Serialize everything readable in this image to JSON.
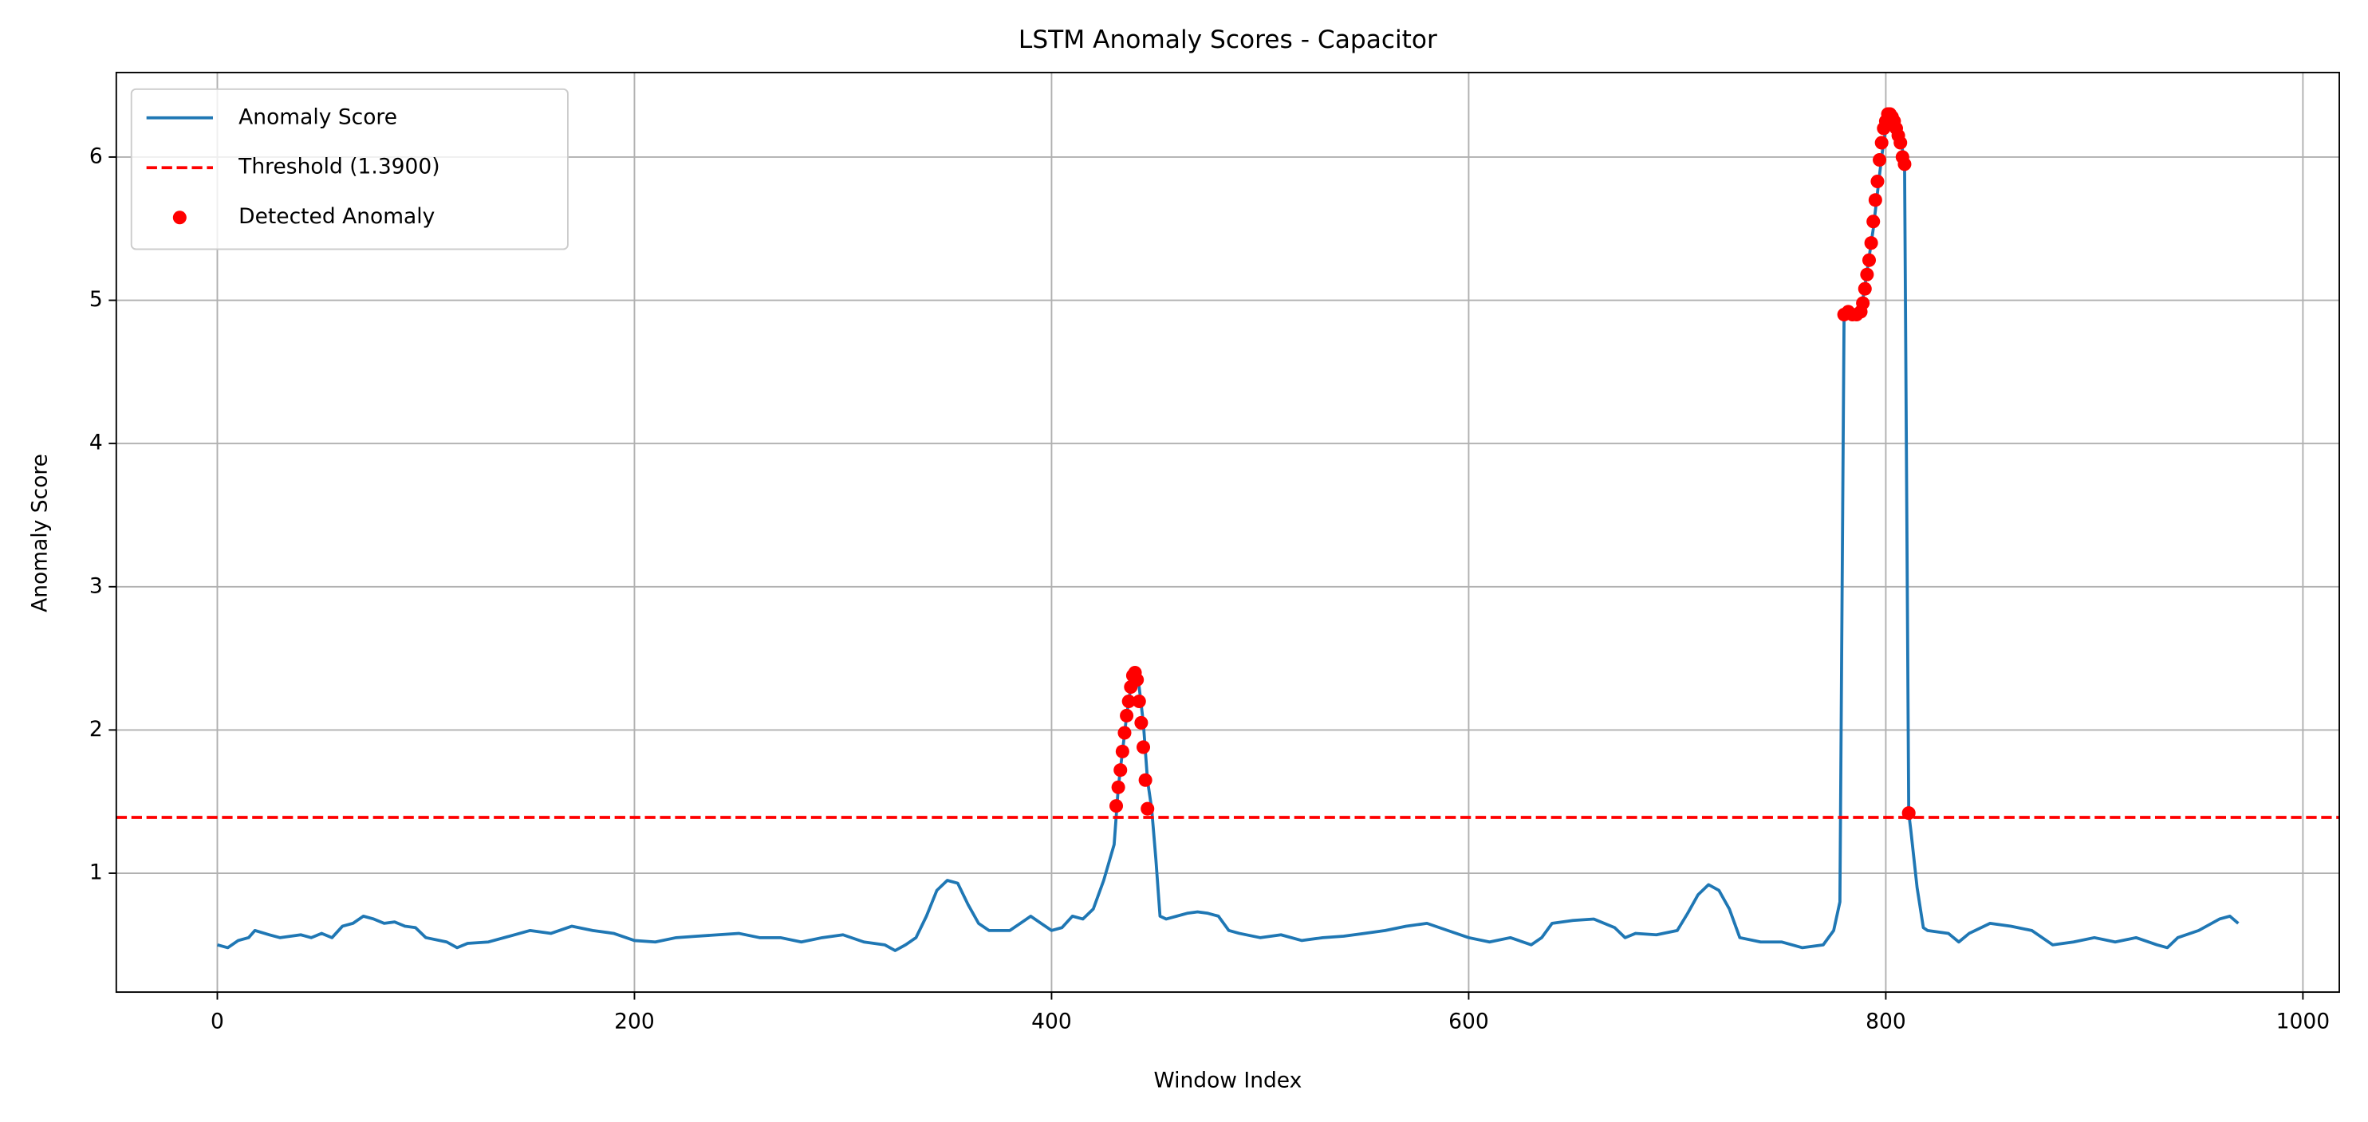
{
  "chart_data": {
    "type": "line",
    "title": "LSTM Anomaly Scores - Capacitor",
    "xlabel": "Window Index",
    "ylabel": "Anomaly Score",
    "xlim": [
      -48.45,
      1017.45
    ],
    "ylim": [
      0.17,
      6.59
    ],
    "xticks": [
      0,
      200,
      400,
      600,
      800,
      1000
    ],
    "yticks": [
      1,
      2,
      3,
      4,
      5,
      6
    ],
    "grid": true,
    "legend": "upper left",
    "series": [
      {
        "name": "Anomaly Score",
        "color": "#1f77b4",
        "x": [
          0,
          5,
          10,
          15,
          18,
          25,
          30,
          40,
          45,
          50,
          55,
          60,
          65,
          70,
          75,
          80,
          85,
          90,
          95,
          100,
          110,
          115,
          120,
          130,
          140,
          150,
          160,
          170,
          180,
          190,
          200,
          210,
          220,
          230,
          240,
          250,
          260,
          270,
          280,
          290,
          300,
          310,
          320,
          325,
          330,
          335,
          340,
          345,
          350,
          355,
          360,
          365,
          370,
          380,
          385,
          390,
          395,
          400,
          405,
          410,
          415,
          420,
          425,
          430,
          432,
          434,
          436,
          438,
          440,
          442,
          444,
          446,
          448,
          450,
          452,
          455,
          460,
          465,
          470,
          475,
          480,
          485,
          490,
          500,
          510,
          520,
          530,
          540,
          550,
          560,
          570,
          580,
          590,
          600,
          610,
          620,
          630,
          635,
          640,
          650,
          660,
          670,
          675,
          680,
          690,
          700,
          705,
          710,
          715,
          720,
          725,
          730,
          740,
          750,
          760,
          770,
          775,
          778,
          780,
          782,
          785,
          788,
          790,
          792,
          794,
          796,
          798,
          800,
          802,
          804,
          806,
          808,
          809,
          811,
          812,
          815,
          818,
          820,
          830,
          835,
          840,
          850,
          860,
          870,
          875,
          880,
          890,
          900,
          910,
          920,
          930,
          935,
          940,
          950,
          960,
          965,
          969
        ],
        "values": [
          0.5,
          0.48,
          0.53,
          0.55,
          0.6,
          0.57,
          0.55,
          0.57,
          0.55,
          0.58,
          0.55,
          0.63,
          0.65,
          0.7,
          0.68,
          0.65,
          0.66,
          0.63,
          0.62,
          0.55,
          0.52,
          0.48,
          0.51,
          0.52,
          0.56,
          0.6,
          0.58,
          0.63,
          0.6,
          0.58,
          0.53,
          0.52,
          0.55,
          0.56,
          0.57,
          0.58,
          0.55,
          0.55,
          0.52,
          0.55,
          0.57,
          0.52,
          0.5,
          0.46,
          0.5,
          0.55,
          0.7,
          0.88,
          0.95,
          0.93,
          0.78,
          0.65,
          0.6,
          0.6,
          0.65,
          0.7,
          0.65,
          0.6,
          0.62,
          0.7,
          0.68,
          0.75,
          0.95,
          1.2,
          1.6,
          1.85,
          2.1,
          2.3,
          2.4,
          2.3,
          2.05,
          1.65,
          1.45,
          1.1,
          0.7,
          0.68,
          0.7,
          0.72,
          0.73,
          0.72,
          0.7,
          0.6,
          0.58,
          0.55,
          0.57,
          0.53,
          0.55,
          0.56,
          0.58,
          0.6,
          0.63,
          0.65,
          0.6,
          0.55,
          0.52,
          0.55,
          0.5,
          0.55,
          0.65,
          0.67,
          0.68,
          0.62,
          0.55,
          0.58,
          0.57,
          0.6,
          0.72,
          0.85,
          0.92,
          0.88,
          0.75,
          0.55,
          0.52,
          0.52,
          0.48,
          0.5,
          0.6,
          0.8,
          4.9,
          4.92,
          4.9,
          4.92,
          5.1,
          5.3,
          5.5,
          5.75,
          6.0,
          6.2,
          6.3,
          6.28,
          6.2,
          6.05,
          5.95,
          1.42,
          1.3,
          0.9,
          0.62,
          0.6,
          0.58,
          0.52,
          0.58,
          0.65,
          0.63,
          0.6,
          0.55,
          0.5,
          0.52,
          0.55,
          0.52,
          0.55,
          0.5,
          0.48,
          0.55,
          0.6,
          0.68,
          0.7,
          0.65
        ]
      }
    ],
    "threshold": {
      "name": "Threshold (1.3900)",
      "value": 1.39,
      "color": "#ff0000"
    },
    "anomalies": {
      "name": "Detected Anomaly",
      "color": "#ff0000",
      "x": [
        431,
        432,
        433,
        434,
        435,
        436,
        437,
        438,
        439,
        440,
        441,
        442,
        443,
        444,
        445,
        446,
        780,
        782,
        784,
        786,
        788,
        789,
        790,
        791,
        792,
        793,
        794,
        795,
        796,
        797,
        798,
        799,
        800,
        801,
        802,
        803,
        804,
        805,
        806,
        807,
        808,
        809,
        811
      ],
      "values": [
        1.47,
        1.6,
        1.72,
        1.85,
        1.98,
        2.1,
        2.2,
        2.3,
        2.38,
        2.4,
        2.35,
        2.2,
        2.05,
        1.88,
        1.65,
        1.45,
        4.9,
        4.92,
        4.9,
        4.9,
        4.92,
        4.98,
        5.08,
        5.18,
        5.28,
        5.4,
        5.55,
        5.7,
        5.83,
        5.98,
        6.1,
        6.2,
        6.25,
        6.3,
        6.3,
        6.28,
        6.25,
        6.2,
        6.15,
        6.1,
        6.0,
        5.95,
        1.42
      ]
    }
  }
}
